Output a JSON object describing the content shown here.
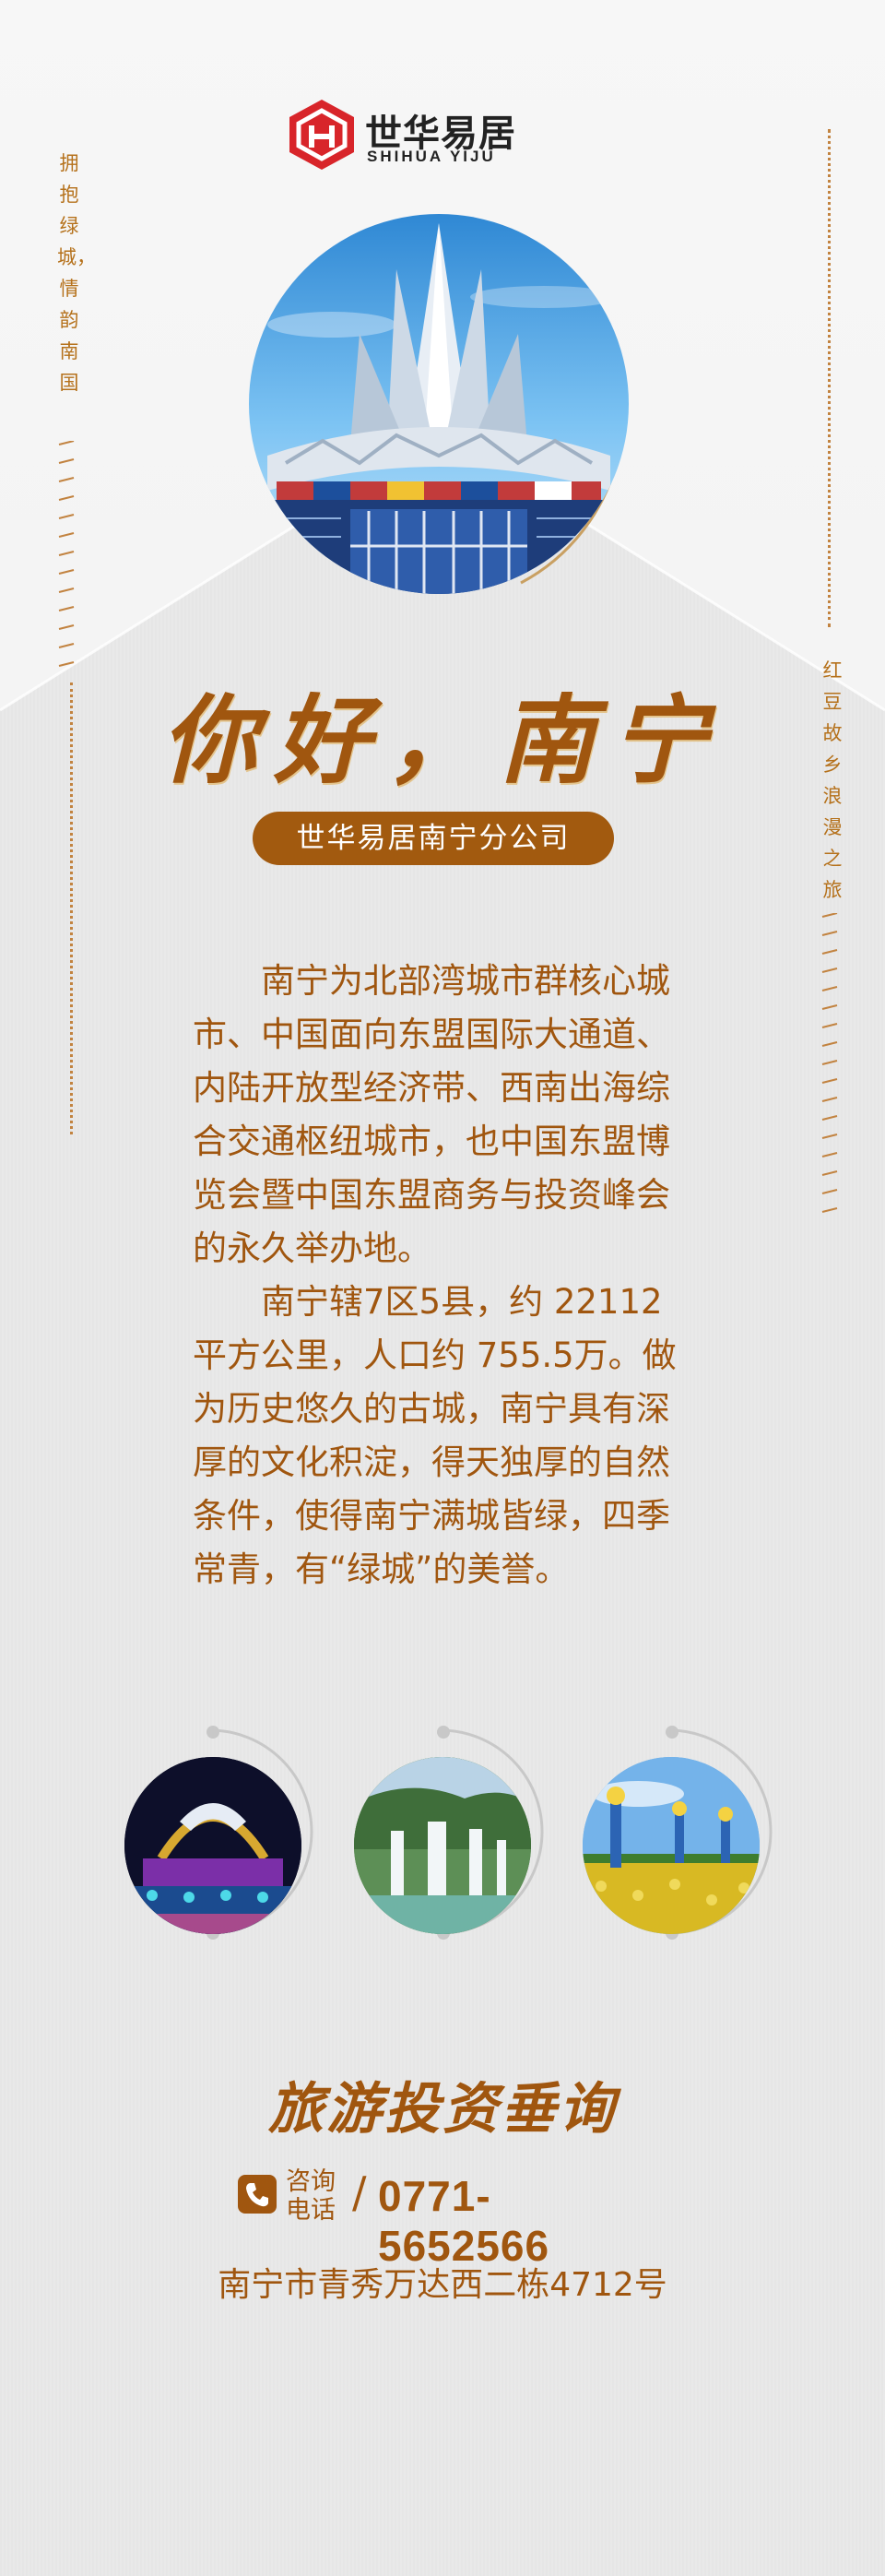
{
  "brand": {
    "name_cn": "世华易居",
    "name_en": "SHIHUA YIJU",
    "colors": {
      "red": "#d8252a",
      "gold": "#a0560f"
    }
  },
  "side_left": {
    "text": "拥抱绿城，情韵南国"
  },
  "side_right": {
    "text": "红豆故乡浪漫之旅"
  },
  "hero": {
    "image": "nanning-convention-center"
  },
  "title": "你好，南宁",
  "subtitle": "世华易居南宁分公司",
  "body": {
    "paragraph_1": "南宁为北部湾城市群核心城市、中国面向东盟国际大通道、内陆开放型经济带、西南出海综合交通枢纽城市，也中国东盟博览会暨中国东盟商务与投资峰会的永久举办地。",
    "paragraph_2": "南宁辖7区5县，约 22112 平方公里，人口约 755.5万。做为历史悠久的古城，南宁具有深厚的文化积淀，得天独厚的自然条件，使得南宁满城皆绿，四季常青，有“绿城”的美誉。"
  },
  "gallery": [
    {
      "image": "night-illuminated-landmark"
    },
    {
      "image": "detian-waterfall"
    },
    {
      "image": "flower-field-sculptures"
    }
  ],
  "cta": "旅游投资垂询",
  "contact": {
    "label": "咨询电话",
    "separator": "/",
    "phone": "0771-5652566",
    "icon": "phone-icon"
  },
  "address": "南宁市青秀万达西二栋4712号"
}
